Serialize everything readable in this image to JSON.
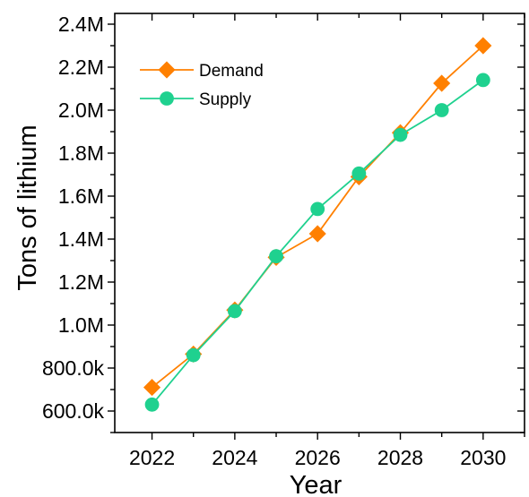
{
  "chart_data": {
    "type": "line",
    "xlabel": "Year",
    "ylabel": "Tons of lithium",
    "x": [
      2022,
      2023,
      2024,
      2025,
      2026,
      2027,
      2028,
      2029,
      2030
    ],
    "xlim": [
      2021.1,
      2031.0
    ],
    "ylim": [
      500000,
      2450000
    ],
    "x_ticks": [
      2022,
      2024,
      2026,
      2028,
      2030
    ],
    "x_tick_labels": [
      "2022",
      "2024",
      "2026",
      "2028",
      "2030"
    ],
    "y_ticks": [
      600000,
      800000,
      1000000,
      1200000,
      1400000,
      1600000,
      1800000,
      2000000,
      2200000,
      2400000
    ],
    "y_tick_labels": [
      "600.0k",
      "800.0k",
      "1.0M",
      "1.2M",
      "1.4M",
      "1.6M",
      "1.8M",
      "2.0M",
      "2.2M",
      "2.4M"
    ],
    "grid": false,
    "legend_position": "top-left",
    "series": [
      {
        "name": "Demand",
        "marker": "diamond",
        "color": "#ff8000",
        "values": [
          710000,
          865000,
          1070000,
          1315000,
          1425000,
          1690000,
          1895000,
          2125000,
          2300000
        ]
      },
      {
        "name": "Supply",
        "marker": "circle",
        "color": "#1fd18f",
        "values": [
          630000,
          860000,
          1065000,
          1320000,
          1540000,
          1705000,
          1885000,
          2000000,
          2140000
        ]
      }
    ]
  }
}
